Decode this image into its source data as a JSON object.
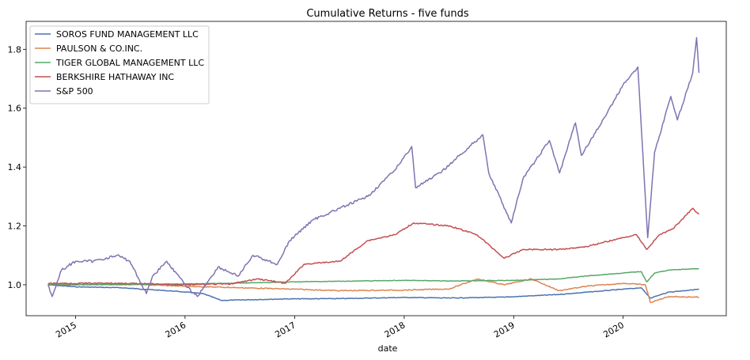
{
  "chart_data": {
    "type": "line",
    "title": "Cumulative Returns - five funds",
    "xlabel": "date",
    "ylabel": "",
    "xlim": [
      "2014-07-20",
      "2020-12-10"
    ],
    "ylim": [
      0.895,
      1.895
    ],
    "x_ticks": [
      "2015-01-01",
      "2016-01-01",
      "2017-01-01",
      "2018-01-01",
      "2019-01-01",
      "2020-01-01"
    ],
    "x_tick_labels": [
      "2015",
      "2016",
      "2017",
      "2018",
      "2019",
      "2020"
    ],
    "y_ticks": [
      1.0,
      1.2,
      1.4,
      1.6,
      1.8
    ],
    "y_tick_labels": [
      "1.0",
      "1.2",
      "1.4",
      "1.6",
      "1.8"
    ],
    "legend_position": "upper-left",
    "series": [
      {
        "name": "SOROS FUND MANAGEMENT LLC",
        "color": "#4c72b0",
        "x": [
          "2014-10-01",
          "2015-01-01",
          "2015-06-01",
          "2015-12-01",
          "2016-03-01",
          "2016-05-01",
          "2016-12-01",
          "2017-06-01",
          "2018-01-01",
          "2018-06-01",
          "2018-12-01",
          "2019-06-01",
          "2020-01-01",
          "2020-03-01",
          "2020-04-01",
          "2020-06-01",
          "2020-09-10"
        ],
        "y": [
          1.0,
          0.993,
          0.99,
          0.978,
          0.97,
          0.947,
          0.952,
          0.953,
          0.957,
          0.955,
          0.958,
          0.967,
          0.985,
          0.99,
          0.955,
          0.975,
          0.985
        ]
      },
      {
        "name": "PAULSON & CO.INC.",
        "color": "#dd8452",
        "x": [
          "2014-10-01",
          "2015-06-01",
          "2016-01-01",
          "2016-07-01",
          "2017-01-01",
          "2017-06-01",
          "2018-01-01",
          "2018-06-01",
          "2018-09-01",
          "2018-12-01",
          "2019-03-01",
          "2019-06-01",
          "2019-09-01",
          "2020-01-01",
          "2020-03-15",
          "2020-04-01",
          "2020-06-01",
          "2020-09-10"
        ],
        "y": [
          1.0,
          1.003,
          0.995,
          0.99,
          0.985,
          0.98,
          0.982,
          0.986,
          1.02,
          1.0,
          1.02,
          0.98,
          0.995,
          1.005,
          1.0,
          0.94,
          0.96,
          0.958
        ]
      },
      {
        "name": "TIGER GLOBAL MANAGEMENT LLC",
        "color": "#55a868",
        "x": [
          "2014-10-01",
          "2015-06-01",
          "2016-01-01",
          "2016-06-01",
          "2017-01-01",
          "2017-06-01",
          "2018-01-01",
          "2018-06-01",
          "2019-01-01",
          "2019-06-01",
          "2019-09-01",
          "2020-01-01",
          "2020-03-01",
          "2020-03-20",
          "2020-04-15",
          "2020-06-01",
          "2020-09-10"
        ],
        "y": [
          1.0,
          1.0,
          1.003,
          1.005,
          1.01,
          1.012,
          1.015,
          1.013,
          1.015,
          1.02,
          1.03,
          1.04,
          1.045,
          1.01,
          1.04,
          1.05,
          1.055
        ]
      },
      {
        "name": "BERKSHIRE HATHAWAY INC",
        "color": "#c44e52",
        "x": [
          "2014-10-01",
          "2015-06-01",
          "2016-01-01",
          "2016-06-01",
          "2016-09-01",
          "2016-12-01",
          "2017-02-01",
          "2017-06-01",
          "2017-09-01",
          "2017-12-01",
          "2018-02-01",
          "2018-06-01",
          "2018-09-01",
          "2018-12-01",
          "2019-02-01",
          "2019-06-01",
          "2019-09-01",
          "2020-01-01",
          "2020-02-15",
          "2020-03-20",
          "2020-05-01",
          "2020-06-15",
          "2020-08-20",
          "2020-09-10"
        ],
        "y": [
          1.005,
          1.005,
          1.0,
          1.003,
          1.02,
          1.005,
          1.07,
          1.08,
          1.15,
          1.17,
          1.21,
          1.2,
          1.17,
          1.09,
          1.12,
          1.12,
          1.13,
          1.16,
          1.17,
          1.12,
          1.17,
          1.19,
          1.26,
          1.24
        ]
      },
      {
        "name": "S&P 500",
        "color": "#8172b2",
        "x": [
          "2014-10-01",
          "2014-10-15",
          "2014-11-15",
          "2015-01-01",
          "2015-03-01",
          "2015-05-20",
          "2015-07-01",
          "2015-08-25",
          "2015-09-15",
          "2015-11-01",
          "2016-01-01",
          "2016-02-11",
          "2016-04-20",
          "2016-06-27",
          "2016-08-15",
          "2016-11-04",
          "2016-12-15",
          "2017-03-01",
          "2017-06-01",
          "2017-09-01",
          "2017-12-01",
          "2018-01-26",
          "2018-02-08",
          "2018-05-01",
          "2018-09-20",
          "2018-10-10",
          "2018-12-24",
          "2019-02-01",
          "2019-04-30",
          "2019-06-03",
          "2019-07-26",
          "2019-08-15",
          "2019-11-01",
          "2020-01-01",
          "2020-02-19",
          "2020-03-23",
          "2020-04-15",
          "2020-06-08",
          "2020-06-30",
          "2020-08-20",
          "2020-09-02",
          "2020-09-10"
        ],
        "y": [
          1.0,
          0.96,
          1.05,
          1.08,
          1.08,
          1.1,
          1.08,
          0.97,
          1.03,
          1.08,
          1.0,
          0.96,
          1.06,
          1.03,
          1.1,
          1.07,
          1.15,
          1.22,
          1.26,
          1.3,
          1.39,
          1.47,
          1.33,
          1.38,
          1.51,
          1.38,
          1.21,
          1.36,
          1.49,
          1.38,
          1.55,
          1.44,
          1.57,
          1.68,
          1.74,
          1.16,
          1.45,
          1.64,
          1.56,
          1.72,
          1.84,
          1.72
        ]
      }
    ]
  }
}
